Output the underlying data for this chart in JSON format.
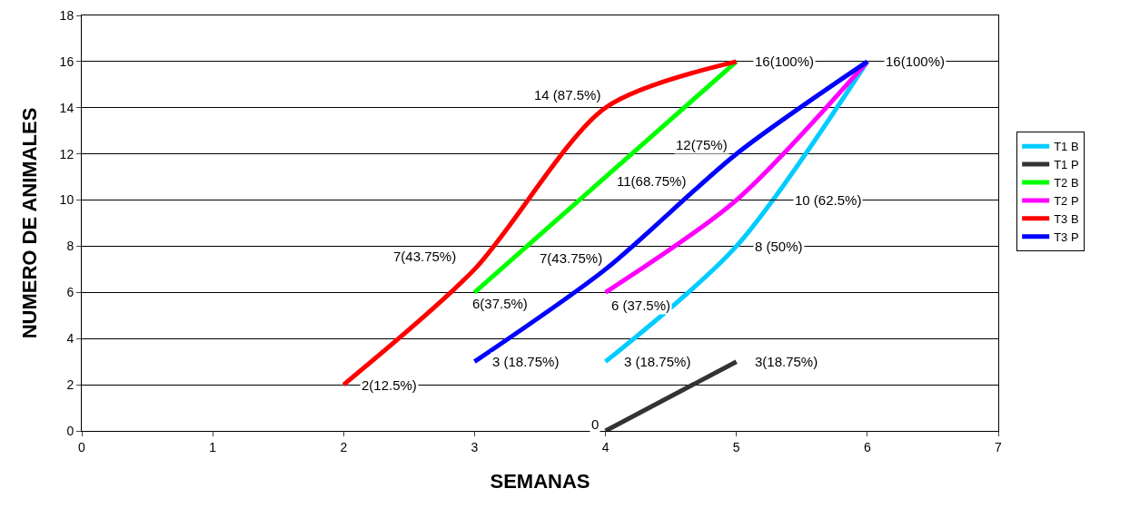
{
  "chart_data": {
    "type": "line",
    "xlabel": "SEMANAS",
    "ylabel": "NUMERO DE ANIMALES",
    "xlim": [
      0,
      7
    ],
    "xticks": [
      0,
      1,
      2,
      3,
      4,
      5,
      6,
      7
    ],
    "ylim": [
      0,
      18
    ],
    "yticks": [
      0,
      2,
      4,
      6,
      8,
      10,
      12,
      14,
      16,
      18
    ],
    "grid": "y",
    "legend": "right",
    "marker": "none",
    "line_style": "solid",
    "series": [
      {
        "name": "T1 B",
        "color": "#00ccff",
        "x": [
          4,
          5,
          6
        ],
        "values": [
          3,
          8,
          16
        ]
      },
      {
        "name": "T1 P",
        "color": "#333333",
        "x": [
          4,
          5
        ],
        "values": [
          0,
          3
        ]
      },
      {
        "name": "T2 B",
        "color": "#00ff00",
        "x": [
          3,
          4,
          5
        ],
        "values": [
          6,
          11,
          16
        ]
      },
      {
        "name": "T2 P",
        "color": "#ff00ff",
        "x": [
          4,
          5,
          6
        ],
        "values": [
          6,
          10,
          16
        ]
      },
      {
        "name": "T3 B",
        "color": "#ff0000",
        "x": [
          2,
          3,
          4,
          5
        ],
        "values": [
          2,
          7,
          14,
          16
        ]
      },
      {
        "name": "T3 P",
        "color": "#0000ff",
        "x": [
          3,
          4,
          5,
          6
        ],
        "values": [
          3,
          7,
          12,
          16
        ]
      }
    ],
    "annotations": [
      {
        "text": "2(12.5%)",
        "x": 2,
        "y": 2
      },
      {
        "text": "7(43.75%)",
        "x": 3,
        "y": 7
      },
      {
        "text": "14 (87.5%)",
        "x": 4,
        "y": 14
      },
      {
        "text": "16(100%)",
        "x": 5,
        "y": 16
      },
      {
        "text": "6(37.5%)",
        "x": 3,
        "y": 6
      },
      {
        "text": "11(68.75%)",
        "x": 4,
        "y": 11
      },
      {
        "text": "3 (18.75%)",
        "x": 3,
        "y": 3
      },
      {
        "text": "7(43.75%)",
        "x": 4,
        "y": 7
      },
      {
        "text": "12(75%)",
        "x": 5,
        "y": 12
      },
      {
        "text": "16(100%)",
        "x": 6,
        "y": 16
      },
      {
        "text": "6 (37.5%)",
        "x": 4,
        "y": 6
      },
      {
        "text": "10 (62.5%)",
        "x": 5,
        "y": 10
      },
      {
        "text": "3 (18.75%)",
        "x": 4,
        "y": 3
      },
      {
        "text": "8 (50%)",
        "x": 5,
        "y": 8
      },
      {
        "text": "0",
        "x": 4,
        "y": 0
      },
      {
        "text": "3(18.75%)",
        "x": 5,
        "y": 3
      }
    ]
  }
}
